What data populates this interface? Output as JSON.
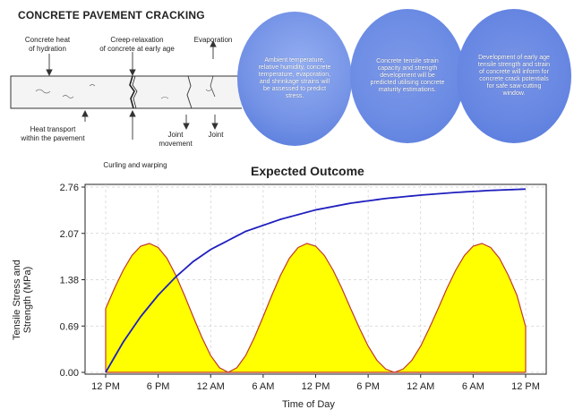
{
  "diagram": {
    "title": "CONCRETE PAVEMENT CRACKING",
    "labels": {
      "heat_hydration": "Concrete heat\nof hydration",
      "creep": "Creep-relaxation\nof concrete at early age",
      "evaporation": "Evaporation",
      "heat_transport": "Heat transport\nwithin the pavement",
      "joint_movement": "Joint\nmovement",
      "joint": "Joint",
      "curling": "Curling and warping"
    }
  },
  "circles": [
    {
      "text": "Ambient temperature, relative humidity, concrete temperature, evaporation, and shrinkage strains will be assessed to predict stress."
    },
    {
      "text": "Concrete tensile strain capacity and strength development will be predicted utilising concrete maturity estimations."
    },
    {
      "text": "Development of early age tensile strength and strain of concrete will inform for concrete crack potentials for safe saw-cutting window."
    }
  ],
  "chart_data": {
    "type": "line",
    "title": "Expected Outcome",
    "xlabel": "Time of Day",
    "ylabel": "Tensile Stress and Strength (MPa)",
    "x_ticks": [
      "12 PM",
      "6 PM",
      "12 AM",
      "6 AM",
      "12 PM",
      "6 PM",
      "12 AM",
      "6 AM",
      "12 PM"
    ],
    "y_ticks": [
      "0.00",
      "0.69",
      "1.38",
      "2.07",
      "2.76"
    ],
    "ylim": [
      0,
      2.76
    ],
    "xlim_hours": [
      0,
      48
    ],
    "grid": true,
    "colors": {
      "strength": "#1f1fbf",
      "stress_fill": "#ffff00",
      "stress_line": "#c0392b"
    },
    "series": [
      {
        "type": "line",
        "x_hours": [
          0,
          2,
          4,
          6,
          8,
          10,
          12,
          16,
          20,
          24,
          28,
          32,
          36,
          40,
          44,
          48
        ],
        "values": [
          0.0,
          0.45,
          0.83,
          1.15,
          1.42,
          1.65,
          1.83,
          2.1,
          2.28,
          2.42,
          2.52,
          2.59,
          2.64,
          2.68,
          2.71,
          2.73
        ]
      },
      {
        "type": "area",
        "x_hours": [
          0,
          1,
          2,
          3,
          4,
          5,
          6,
          7,
          8,
          9,
          10,
          11,
          12,
          13,
          14,
          15,
          16,
          17,
          18,
          19,
          20,
          21,
          22,
          23,
          24,
          25,
          26,
          27,
          28,
          29,
          30,
          31,
          32,
          33,
          34,
          35,
          36,
          37,
          38,
          39,
          40,
          41,
          42,
          43,
          44,
          45,
          46,
          47,
          48
        ],
        "values": [
          0.95,
          1.25,
          1.52,
          1.74,
          1.88,
          1.92,
          1.86,
          1.7,
          1.45,
          1.15,
          0.83,
          0.52,
          0.25,
          0.07,
          0.0,
          0.07,
          0.25,
          0.52,
          0.83,
          1.15,
          1.45,
          1.7,
          1.86,
          1.92,
          1.88,
          1.74,
          1.52,
          1.25,
          0.95,
          0.66,
          0.39,
          0.18,
          0.05,
          0.0,
          0.05,
          0.18,
          0.39,
          0.66,
          0.95,
          1.25,
          1.52,
          1.74,
          1.88,
          1.92,
          1.86,
          1.7,
          1.45,
          1.15,
          0.68
        ]
      }
    ]
  }
}
